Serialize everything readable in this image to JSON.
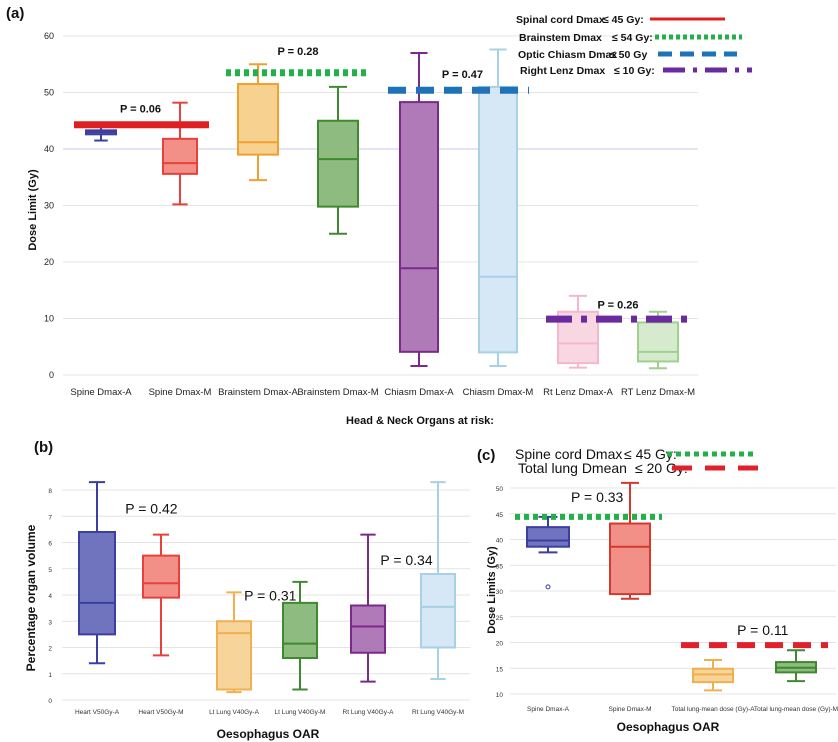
{
  "chart_data": [
    {
      "panel": "(a)",
      "type": "box",
      "title": "",
      "xlabel": "Head & Neck Organs at risk:",
      "ylabel": "Dose Limit (Gy)",
      "ylim": [
        0,
        60
      ],
      "yticks": [
        0,
        10,
        20,
        30,
        40,
        50,
        60
      ],
      "grid": true,
      "categories": [
        "Spine Dmax-A",
        "Spine Dmax-M",
        "Brainstem Dmax-A",
        "Brainstem Dmax-M",
        "Chiasm Dmax-A",
        "Chiasm Dmax-M",
        "Rt Lenz Dmax-A",
        "RT Lenz Dmax-M"
      ],
      "boxes": [
        {
          "min": 41.5,
          "q1": 42.6,
          "median": 43.0,
          "q3": 43.3,
          "max": 44.0,
          "color": "#3a3fa0",
          "fill": "#5a5fb8"
        },
        {
          "min": 30.2,
          "q1": 35.6,
          "median": 37.5,
          "q3": 41.8,
          "max": 48.2,
          "color": "#e8403a",
          "fill": "#f29088"
        },
        {
          "min": 34.5,
          "q1": 39.0,
          "median": 41.2,
          "q3": 51.5,
          "max": 55.0,
          "color": "#f0a030",
          "fill": "#f7d18f"
        },
        {
          "min": 25.0,
          "q1": 29.8,
          "median": 38.2,
          "q3": 45.0,
          "max": 51.0,
          "color": "#3f8a30",
          "fill": "#8dbb80"
        },
        {
          "min": 1.6,
          "q1": 4.1,
          "median": 18.9,
          "q3": 48.3,
          "max": 57.0,
          "color": "#7a2a8a",
          "fill": "#b07ab8"
        },
        {
          "min": 1.6,
          "q1": 4.0,
          "median": 17.4,
          "q3": 51.0,
          "max": 57.6,
          "color": "#a8d0e6",
          "fill": "#d6e7f5"
        },
        {
          "min": 1.3,
          "q1": 2.1,
          "median": 5.6,
          "q3": 11.2,
          "max": 14.0,
          "color": "#f4b8cc",
          "fill": "#f8d6e2"
        },
        {
          "min": 1.2,
          "q1": 2.4,
          "median": 4.1,
          "q3": 9.3,
          "max": 11.2,
          "color": "#9fd08e",
          "fill": "#d6ebce"
        }
      ],
      "limit_lines": [
        {
          "name": "Spinal cord Dmax",
          "value": 45,
          "drawn_at": 44.3,
          "from_cat": 0,
          "to_cat": 1,
          "style": "solid",
          "color": "#e02020"
        },
        {
          "name": "Brainstem Dmax",
          "value": 54,
          "drawn_at": 53.5,
          "from_cat": 2,
          "to_cat": 3,
          "style": "dotted",
          "color": "#22b04a"
        },
        {
          "name": "Optic Chiasm Dmax",
          "value": 50,
          "drawn_at": 50.4,
          "from_cat": 4,
          "to_cat": 5,
          "style": "dashed",
          "color": "#1f72b8"
        },
        {
          "name": "Right Lenz Dmax",
          "value": 10,
          "drawn_at": 9.9,
          "from_cat": 6,
          "to_cat": 7,
          "style": "dashdot",
          "color": "#6a2aa0"
        }
      ],
      "annotations": [
        {
          "text": "P = 0.06",
          "x_cat": 0.5,
          "y": 46.5
        },
        {
          "text": "P = 0.28",
          "x_cat": 2.5,
          "y": 56.6
        },
        {
          "text": "P = 0.47",
          "x_cat": 4.55,
          "y": 52.6
        },
        {
          "text": "P = 0.26",
          "x_cat": 6.5,
          "y": 11.8
        }
      ],
      "legend": {
        "placement": "top-right",
        "entries": [
          {
            "label": "Spinal cord Dmax",
            "op": "≤ 45 Gy:",
            "style": "solid",
            "color": "#e02020"
          },
          {
            "label": "Brainstem Dmax",
            "op": "≤ 54 Gy:",
            "style": "dotted",
            "color": "#22b04a"
          },
          {
            "label": "Optic Chiasm Dmax",
            "op": "≤ 50 Gy",
            "style": "dashed",
            "color": "#1f72b8"
          },
          {
            "label": "Right Lenz Dmax",
            "op": "≤ 10 Gy:",
            "style": "dashdot",
            "color": "#6a2aa0"
          }
        ]
      }
    },
    {
      "panel": "(b)",
      "type": "box",
      "title": "",
      "xlabel": "Oesophagus OAR",
      "ylabel": "Percentage organ volume",
      "ylim": [
        0,
        8
      ],
      "yticks": [
        0,
        1,
        2,
        3,
        4,
        5,
        6,
        7,
        8
      ],
      "grid": true,
      "categories": [
        "Heart V50Gy-A",
        "Heart V50Gy-M",
        "Lt Lung V40Gy-A",
        "Lt Lung V40Gy-M",
        "Rt Lung V40Gy-A",
        "Rt Lung V40Gy-M"
      ],
      "boxes": [
        {
          "min": 1.4,
          "q1": 2.5,
          "median": 3.7,
          "q3": 6.4,
          "max": 8.3,
          "color": "#3a3fa0",
          "fill": "#7074bf"
        },
        {
          "min": 1.7,
          "q1": 3.9,
          "median": 4.45,
          "q3": 5.5,
          "max": 6.3,
          "color": "#e8403a",
          "fill": "#f29088"
        },
        {
          "min": 0.3,
          "q1": 0.4,
          "median": 2.55,
          "q3": 3.0,
          "max": 4.1,
          "color": "#f0b050",
          "fill": "#f7d49a"
        },
        {
          "min": 0.4,
          "q1": 1.6,
          "median": 2.15,
          "q3": 3.7,
          "max": 4.5,
          "color": "#3f8a30",
          "fill": "#8dbb80"
        },
        {
          "min": 0.7,
          "q1": 1.8,
          "median": 2.8,
          "q3": 3.6,
          "max": 6.3,
          "color": "#7a2a8a",
          "fill": "#b07ab8"
        },
        {
          "min": 0.8,
          "q1": 2.0,
          "median": 3.55,
          "q3": 4.8,
          "max": 8.3,
          "color": "#a8d0e6",
          "fill": "#d6e7f5"
        }
      ],
      "annotations": [
        {
          "text": "P = 0.42",
          "x_cat": 0.85,
          "y": 7.1
        },
        {
          "text": "P = 0.31",
          "x_cat": 2.55,
          "y": 3.8
        },
        {
          "text": "P = 0.34",
          "x_cat": 4.55,
          "y": 5.15
        }
      ]
    },
    {
      "panel": "(c)",
      "type": "box",
      "title": "",
      "xlabel": "Oesophagus OAR",
      "ylabel": "Dose Limits (Gy)",
      "ylim": [
        10,
        50
      ],
      "yticks": [
        10,
        15,
        20,
        25,
        30,
        35,
        40,
        45,
        50
      ],
      "grid": true,
      "categories": [
        "Spine Dmax-A",
        "Spine Dmax-M",
        "Total lung-mean dose (Gy)-A",
        "Total lung-mean dose (Gy)-M"
      ],
      "boxes": [
        {
          "min": 37.5,
          "q1": 38.6,
          "median": 39.8,
          "q3": 42.4,
          "max": 44.4,
          "outliers": [
            30.8
          ],
          "color": "#3a3fa0",
          "fill": "#7074bf"
        },
        {
          "min": 28.5,
          "q1": 29.4,
          "median": 38.6,
          "q3": 43.1,
          "max": 51.0,
          "color": "#d23a30",
          "fill": "#f29088"
        },
        {
          "min": 10.7,
          "q1": 12.3,
          "median": 13.8,
          "q3": 14.9,
          "max": 16.6,
          "color": "#f0b050",
          "fill": "#f7d49a"
        },
        {
          "min": 12.5,
          "q1": 14.2,
          "median": 15.1,
          "q3": 16.2,
          "max": 18.5,
          "color": "#3f8a30",
          "fill": "#8dbb80"
        }
      ],
      "limit_lines": [
        {
          "name": "Spine cord Dmax",
          "value": 45,
          "drawn_at": 44.4,
          "from_cat": 0,
          "to_cat": 1,
          "style": "dotted",
          "color": "#22b04a"
        },
        {
          "name": "Total lung Dmean",
          "value": 20,
          "drawn_at": 19.5,
          "from_cat": 2,
          "to_cat": 3,
          "style": "dashed",
          "color": "#e0202a"
        }
      ],
      "annotations": [
        {
          "text": "P = 0.33",
          "x_cat": 0.6,
          "y": 47.3
        },
        {
          "text": "P = 0.11",
          "x_cat": 2.6,
          "y": 21.5
        }
      ],
      "legend": {
        "placement": "top",
        "entries": [
          {
            "label": "Spine cord Dmax",
            "op": "≤ 45 Gy:",
            "style": "dotted",
            "color": "#22b04a"
          },
          {
            "label": "Total lung Dmean",
            "op": "≤ 20 Gy:",
            "style": "dashed",
            "color": "#e0202a"
          }
        ]
      }
    }
  ]
}
